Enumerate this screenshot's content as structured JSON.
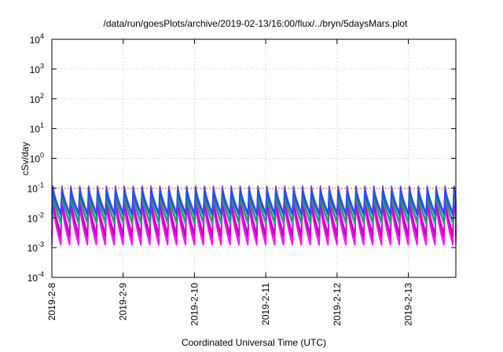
{
  "chart_data": {
    "type": "line",
    "title": "/data/run/goesPlots/archive/2019-02-13/16:00/flux/../bryn/5daysMars.plot",
    "xlabel": "Coordinated Universal Time (UTC)",
    "ylabel": "cSv/day",
    "yscale": "log",
    "ylim": [
      0.0001,
      10000
    ],
    "yticks": [
      {
        "exp": "-4"
      },
      {
        "exp": "-3"
      },
      {
        "exp": "-2"
      },
      {
        "exp": "-1"
      },
      {
        "exp": "0"
      },
      {
        "exp": "1"
      },
      {
        "exp": "2"
      },
      {
        "exp": "3"
      },
      {
        "exp": "4"
      }
    ],
    "ytick_base": "10",
    "xlim": [
      "2019-02-08 00:00",
      "2019-02-13 16:00"
    ],
    "xticks": [
      "2019-2-8",
      "2019-2-9",
      "2019-2-10",
      "2019-2-11",
      "2019-2-12",
      "2019-2-13"
    ],
    "grid": true,
    "pulse_period_hours": 3,
    "series": [
      {
        "color": "#ff00ff",
        "peak": 0.03,
        "trough": 0.0012
      },
      {
        "color": "#ff00ff",
        "peak": 0.04,
        "trough": 0.0018
      },
      {
        "color": "#8b1a8b",
        "peak": 0.045,
        "trough": 0.0025
      },
      {
        "color": "#d000d0",
        "peak": 0.05,
        "trough": 0.003
      },
      {
        "color": "#20b2aa",
        "peak": 0.06,
        "trough": 0.006
      },
      {
        "color": "#2e8b57",
        "peak": 0.07,
        "trough": 0.008
      },
      {
        "color": "#0066cc",
        "peak": 0.09,
        "trough": 0.012
      },
      {
        "color": "#3344ff",
        "peak": 0.12,
        "trough": 0.015
      },
      {
        "color": "#ff3300",
        "peak": 0.1,
        "trough": 0.1
      }
    ]
  }
}
